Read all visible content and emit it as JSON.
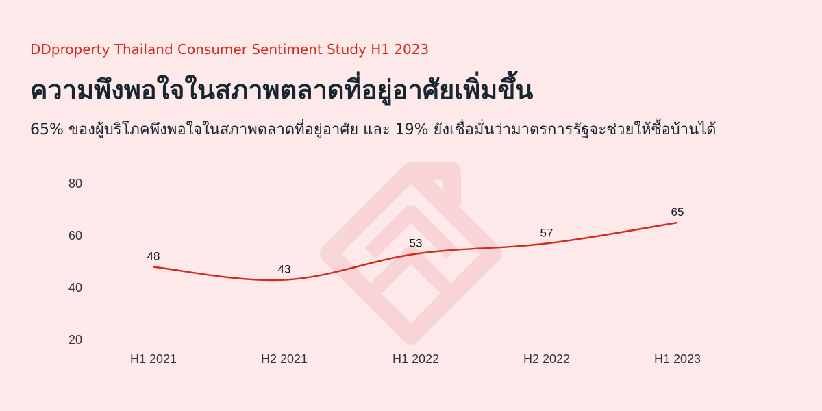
{
  "header": {
    "eyebrow": "DDproperty Thailand Consumer Sentiment Study H1 2023",
    "title": "ความพึงพอใจในสภาพตลาดที่อยู่อาศัยเพิ่มขึ้น",
    "subtitle": "65% ของผู้บริโภคพึงพอใจในสภาพตลาดที่อยู่อาศัย และ 19% ยังเชื่อมั่นว่ามาตรการรัฐจะช่วยให้ซื้อบ้านได้"
  },
  "colors": {
    "background": "#fde9ea",
    "accent": "#d42b1e",
    "text": "#182430",
    "watermark": "#f4c4c6"
  },
  "watermark_icon": "ddproperty-logo-icon",
  "chart_data": {
    "type": "line",
    "categories": [
      "H1 2021",
      "H2 2021",
      "H1 2022",
      "H2 2022",
      "H1 2023"
    ],
    "series": [
      {
        "values": [
          48,
          43,
          53,
          57,
          65
        ],
        "data_labels": [
          "48",
          "43",
          "53",
          "57",
          "65"
        ]
      }
    ],
    "yticks": [
      20,
      40,
      60,
      80
    ],
    "ylim": [
      20,
      80
    ],
    "grid": false,
    "line_color": "#d42b1e"
  }
}
